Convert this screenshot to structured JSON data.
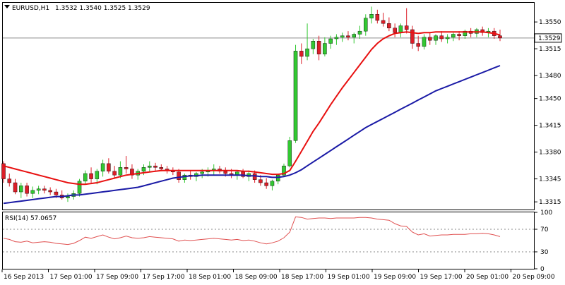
{
  "chart_header": {
    "symbol_timeframe": "EURUSD,H1",
    "ohlc": "1.3532 1.3540 1.3525 1.3529"
  },
  "price_scale": {
    "ticks": [
      "1.3550",
      "1.3515",
      "1.3480",
      "1.3450",
      "1.3415",
      "1.3380",
      "1.3345",
      "1.3315"
    ],
    "current_price_label": "1.3529"
  },
  "rsi_panel": {
    "title": "RSI(14) 57.0657",
    "ticks": [
      "100",
      "70",
      "30",
      "0"
    ]
  },
  "time_scale": {
    "ticks": [
      "16 Sep 2013",
      "17 Sep 01:00",
      "17 Sep 09:00",
      "17 Sep 17:00",
      "18 Sep 01:00",
      "18 Sep 09:00",
      "18 Sep 17:00",
      "19 Sep 01:00",
      "19 Sep 09:00",
      "19 Sep 17:00",
      "20 Sep 01:00",
      "20 Sep 09:00"
    ]
  },
  "colors": {
    "bull_candle": "#32c832",
    "bear_candle": "#dc1e28",
    "fast_ma": "#e81010",
    "slow_ma": "#1a1aa6",
    "rsi_line": "#e05050",
    "bid_line": "#8c8c8c"
  },
  "chart_data": [
    {
      "type": "candlestick",
      "title": "EURUSD,H1",
      "ylim": [
        1.3305,
        1.3575
      ],
      "yticks": [
        1.355,
        1.3515,
        1.348,
        1.345,
        1.3415,
        1.338,
        1.3345,
        1.3315
      ],
      "current_price": 1.3529,
      "x_labels": [
        "16 Sep 2013",
        "17 Sep 01:00",
        "17 Sep 09:00",
        "17 Sep 17:00",
        "18 Sep 01:00",
        "18 Sep 09:00",
        "18 Sep 17:00",
        "19 Sep 01:00",
        "19 Sep 09:00",
        "19 Sep 17:00",
        "20 Sep 01:00",
        "20 Sep 09:00"
      ],
      "series": [
        {
          "type": "ohlc",
          "values": [
            [
              1.3365,
              1.3368,
              1.334,
              1.3345
            ],
            [
              1.3345,
              1.3352,
              1.3335,
              1.334
            ],
            [
              1.334,
              1.3345,
              1.3325,
              1.3328
            ],
            [
              1.3328,
              1.334,
              1.332,
              1.3336
            ],
            [
              1.3336,
              1.334,
              1.3322,
              1.3326
            ],
            [
              1.3326,
              1.3335,
              1.332,
              1.333
            ],
            [
              1.333,
              1.3336,
              1.3325,
              1.3332
            ],
            [
              1.3332,
              1.3336,
              1.3326,
              1.333
            ],
            [
              1.333,
              1.3334,
              1.3324,
              1.3328
            ],
            [
              1.3328,
              1.3332,
              1.332,
              1.3324
            ],
            [
              1.3324,
              1.333,
              1.3318,
              1.332
            ],
            [
              1.332,
              1.3326,
              1.3315,
              1.3322
            ],
            [
              1.3322,
              1.333,
              1.3318,
              1.3326
            ],
            [
              1.3326,
              1.3345,
              1.3322,
              1.3342
            ],
            [
              1.3342,
              1.3356,
              1.3338,
              1.3352
            ],
            [
              1.3352,
              1.336,
              1.334,
              1.3345
            ],
            [
              1.3345,
              1.3358,
              1.3338,
              1.3355
            ],
            [
              1.3355,
              1.337,
              1.3348,
              1.3365
            ],
            [
              1.3365,
              1.3372,
              1.3352,
              1.3355
            ],
            [
              1.3355,
              1.3362,
              1.3345,
              1.335
            ],
            [
              1.335,
              1.3368,
              1.3346,
              1.336
            ],
            [
              1.336,
              1.3375,
              1.3352,
              1.3358
            ],
            [
              1.3358,
              1.3364,
              1.3345,
              1.335
            ],
            [
              1.335,
              1.3358,
              1.3344,
              1.3355
            ],
            [
              1.3355,
              1.3364,
              1.335,
              1.336
            ],
            [
              1.336,
              1.3368,
              1.3354,
              1.3362
            ],
            [
              1.3362,
              1.3366,
              1.3356,
              1.336
            ],
            [
              1.336,
              1.3364,
              1.3355,
              1.3358
            ],
            [
              1.3358,
              1.3362,
              1.3352,
              1.3356
            ],
            [
              1.3356,
              1.336,
              1.335,
              1.3354
            ],
            [
              1.3354,
              1.3358,
              1.334,
              1.3344
            ],
            [
              1.3344,
              1.3352,
              1.334,
              1.335
            ],
            [
              1.335,
              1.3356,
              1.3344,
              1.3348
            ],
            [
              1.3348,
              1.3354,
              1.3342,
              1.3352
            ],
            [
              1.3352,
              1.3358,
              1.3346,
              1.3354
            ],
            [
              1.3354,
              1.336,
              1.3348,
              1.3356
            ],
            [
              1.3356,
              1.3364,
              1.335,
              1.3358
            ],
            [
              1.3358,
              1.3362,
              1.3352,
              1.3355
            ],
            [
              1.3355,
              1.336,
              1.3348,
              1.3352
            ],
            [
              1.3352,
              1.3358,
              1.3346,
              1.335
            ],
            [
              1.335,
              1.3356,
              1.3344,
              1.3354
            ],
            [
              1.3354,
              1.3358,
              1.3346,
              1.3348
            ],
            [
              1.3348,
              1.3356,
              1.3342,
              1.3352
            ],
            [
              1.3352,
              1.3356,
              1.334,
              1.3344
            ],
            [
              1.3344,
              1.335,
              1.3336,
              1.334
            ],
            [
              1.334,
              1.3346,
              1.3332,
              1.3336
            ],
            [
              1.3336,
              1.3344,
              1.333,
              1.3342
            ],
            [
              1.3342,
              1.3352,
              1.3338,
              1.335
            ],
            [
              1.335,
              1.3365,
              1.3348,
              1.3362
            ],
            [
              1.3362,
              1.34,
              1.336,
              1.3395
            ],
            [
              1.3395,
              1.352,
              1.3392,
              1.3512
            ],
            [
              1.3512,
              1.3522,
              1.3495,
              1.3505
            ],
            [
              1.3505,
              1.3548,
              1.35,
              1.3515
            ],
            [
              1.3515,
              1.3528,
              1.3508,
              1.3525
            ],
            [
              1.3525,
              1.3532,
              1.35,
              1.3508
            ],
            [
              1.3508,
              1.353,
              1.3505,
              1.3522
            ],
            [
              1.3522,
              1.3532,
              1.3515,
              1.3528
            ],
            [
              1.3528,
              1.3534,
              1.352,
              1.353
            ],
            [
              1.353,
              1.3536,
              1.3524,
              1.3532
            ],
            [
              1.3532,
              1.3538,
              1.3526,
              1.353
            ],
            [
              1.353,
              1.3536,
              1.3522,
              1.3534
            ],
            [
              1.3534,
              1.3545,
              1.3528,
              1.3538
            ],
            [
              1.3538,
              1.356,
              1.3532,
              1.3555
            ],
            [
              1.3555,
              1.357,
              1.3548,
              1.356
            ],
            [
              1.356,
              1.3566,
              1.3548,
              1.3552
            ],
            [
              1.3552,
              1.3562,
              1.3544,
              1.3548
            ],
            [
              1.3548,
              1.3556,
              1.3538,
              1.3542
            ],
            [
              1.3542,
              1.3548,
              1.353,
              1.3536
            ],
            [
              1.3536,
              1.3548,
              1.353,
              1.3545
            ],
            [
              1.3545,
              1.3568,
              1.3535,
              1.354
            ],
            [
              1.354,
              1.3545,
              1.3515,
              1.3522
            ],
            [
              1.3522,
              1.3532,
              1.3512,
              1.3518
            ],
            [
              1.3518,
              1.3534,
              1.3514,
              1.353
            ],
            [
              1.353,
              1.3536,
              1.352,
              1.3526
            ],
            [
              1.3526,
              1.3534,
              1.352,
              1.3532
            ],
            [
              1.3532,
              1.3538,
              1.3524,
              1.3528
            ],
            [
              1.3528,
              1.3534,
              1.3522,
              1.353
            ],
            [
              1.353,
              1.3536,
              1.3525,
              1.3534
            ],
            [
              1.3534,
              1.3538,
              1.3526,
              1.3532
            ],
            [
              1.3532,
              1.354,
              1.3528,
              1.3538
            ],
            [
              1.3538,
              1.3542,
              1.353,
              1.3535
            ],
            [
              1.3535,
              1.3542,
              1.353,
              1.354
            ],
            [
              1.354,
              1.3544,
              1.3532,
              1.3536
            ],
            [
              1.3536,
              1.3542,
              1.353,
              1.3538
            ],
            [
              1.3538,
              1.3542,
              1.3528,
              1.3532
            ],
            [
              1.3532,
              1.354,
              1.3525,
              1.3529
            ]
          ]
        },
        {
          "name": "",
          "type": "line",
          "color": "#e81010",
          "values": [
            1.3362,
            1.336,
            1.3358,
            1.3356,
            1.3354,
            1.3352,
            1.335,
            1.3348,
            1.3346,
            1.3344,
            1.3342,
            1.334,
            1.3339,
            1.3338,
            1.3338,
            1.3339,
            1.334,
            1.3342,
            1.3344,
            1.3346,
            1.3348,
            1.335,
            1.3351,
            1.3352,
            1.3353,
            1.3354,
            1.3355,
            1.3356,
            1.3356,
            1.3356,
            1.3356,
            1.3356,
            1.3356,
            1.3356,
            1.3356,
            1.3356,
            1.3356,
            1.3356,
            1.3356,
            1.3356,
            1.3356,
            1.3355,
            1.3355,
            1.3354,
            1.3353,
            1.3352,
            1.3351,
            1.3351,
            1.3352,
            1.3356,
            1.3368,
            1.3381,
            1.3394,
            1.3407,
            1.3418,
            1.343,
            1.3442,
            1.3453,
            1.3464,
            1.3474,
            1.3484,
            1.3494,
            1.3504,
            1.3514,
            1.3522,
            1.3528,
            1.3532,
            1.3535,
            1.3536,
            1.3537,
            1.3536,
            1.3535,
            1.3536,
            1.3536,
            1.3537,
            1.3537,
            1.3537,
            1.3537,
            1.3537,
            1.3537,
            1.3537,
            1.3537,
            1.3537,
            1.3536,
            1.3535,
            1.3533
          ]
        },
        {
          "name": "",
          "type": "line",
          "color": "#1a1aa6",
          "values": [
            1.3313,
            1.3314,
            1.3315,
            1.3316,
            1.3317,
            1.3318,
            1.3319,
            1.332,
            1.3321,
            1.3322,
            1.3322,
            1.3323,
            1.3324,
            1.3324,
            1.3325,
            1.3326,
            1.3327,
            1.3328,
            1.3329,
            1.333,
            1.3331,
            1.3332,
            1.3333,
            1.3334,
            1.3336,
            1.3338,
            1.334,
            1.3342,
            1.3344,
            1.3346,
            1.3347,
            1.3348,
            1.3349,
            1.3349,
            1.335,
            1.335,
            1.335,
            1.335,
            1.335,
            1.335,
            1.335,
            1.335,
            1.3349,
            1.3349,
            1.3348,
            1.3348,
            1.3347,
            1.3347,
            1.3348,
            1.335,
            1.3353,
            1.3357,
            1.3362,
            1.3367,
            1.3372,
            1.3377,
            1.3382,
            1.3387,
            1.3392,
            1.3397,
            1.3402,
            1.3407,
            1.3412,
            1.3416,
            1.342,
            1.3424,
            1.3428,
            1.3432,
            1.3436,
            1.344,
            1.3444,
            1.3448,
            1.3452,
            1.3456,
            1.346,
            1.3463,
            1.3466,
            1.3469,
            1.3472,
            1.3475,
            1.3478,
            1.3481,
            1.3484,
            1.3487,
            1.349,
            1.3493
          ]
        }
      ]
    },
    {
      "type": "line",
      "title": "RSI(14) 57.0657",
      "ylim": [
        0,
        100
      ],
      "yticks": [
        100,
        70,
        30,
        0
      ],
      "levels": [
        70,
        30
      ],
      "series": [
        {
          "name": "RSI(14)",
          "color": "#e05050",
          "values": [
            54,
            52,
            48,
            47,
            49,
            46,
            47,
            48,
            47,
            45,
            44,
            43,
            45,
            50,
            56,
            54,
            57,
            60,
            56,
            53,
            55,
            58,
            55,
            54,
            55,
            57,
            56,
            55,
            54,
            53,
            49,
            51,
            50,
            51,
            52,
            53,
            54,
            53,
            52,
            51,
            52,
            50,
            51,
            49,
            46,
            44,
            46,
            49,
            55,
            65,
            92,
            91,
            88,
            89,
            90,
            90,
            89,
            90,
            90,
            90,
            90,
            91,
            91,
            90,
            88,
            87,
            86,
            80,
            76,
            75,
            65,
            60,
            62,
            58,
            59,
            60,
            60,
            61,
            61,
            61,
            62,
            62,
            63,
            62,
            60,
            57
          ]
        }
      ]
    }
  ]
}
